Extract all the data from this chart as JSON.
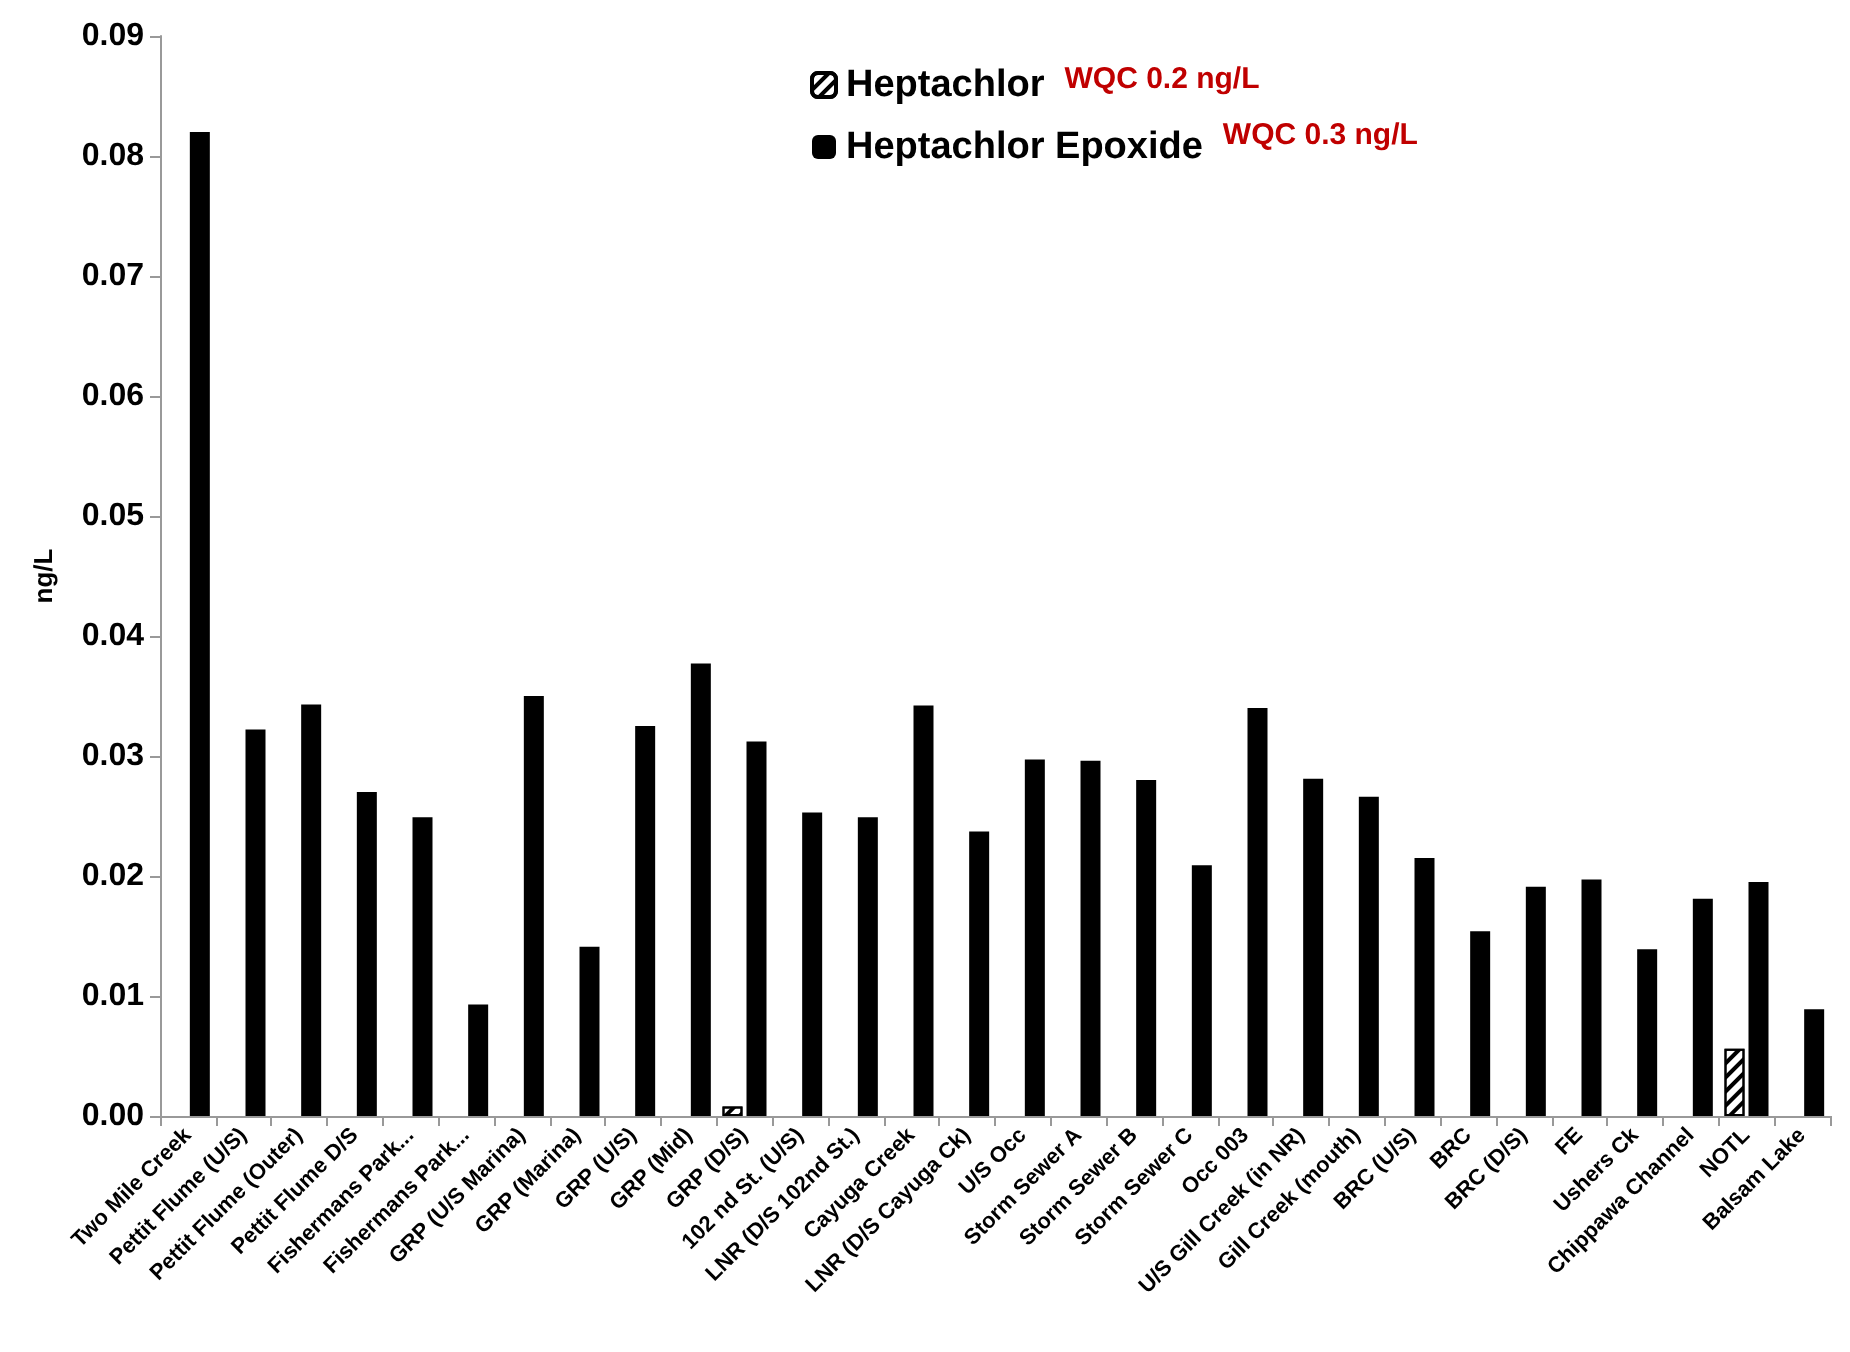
{
  "chart_data": {
    "type": "bar",
    "ylabel": "ng/L",
    "categories": [
      "Two Mile Creek",
      "Pettit Flume (U/S)",
      "Pettit Flume (Outer)",
      "Pettit Flume D/S",
      "Fishermans Park...",
      "Fishermans Park...",
      "GRP (U/S Marina)",
      "GRP (Marina)",
      "GRP (U/S)",
      "GRP (Mid)",
      "GRP (D/S)",
      "102 nd St. (U/S)",
      "LNR (D/S 102nd St.)",
      "Cayuga Creek",
      "LNR (D/S Cayuga Ck)",
      "U/S Occ",
      "Storm Sewer A",
      "Storm Sewer B",
      "Storm Sewer C",
      "Occ 003",
      "U/S Gill Creek (in NR)",
      "Gill Creek (mouth)",
      "BRC (U/S)",
      "BRC",
      "BRC (D/S)",
      "FE",
      "Ushers Ck",
      "Chippawa Channel",
      "NOTL",
      "Balsam Lake"
    ],
    "series": [
      {
        "name": "Heptachlor",
        "color": "#ffffff",
        "values": [
          null,
          null,
          null,
          null,
          null,
          null,
          null,
          null,
          null,
          null,
          0.0008,
          null,
          null,
          null,
          null,
          null,
          null,
          null,
          null,
          null,
          null,
          null,
          null,
          null,
          null,
          null,
          null,
          null,
          0.0056,
          null
        ]
      },
      {
        "name": "Heptachlor Epoxide",
        "color": "#000000",
        "values": [
          0.082,
          0.0322,
          0.0343,
          0.027,
          0.0249,
          0.0093,
          0.035,
          0.0141,
          0.0325,
          0.0377,
          0.0312,
          0.0253,
          0.0249,
          0.0342,
          0.0237,
          0.0297,
          0.0296,
          0.028,
          0.0209,
          0.034,
          0.0281,
          0.0266,
          0.0215,
          0.0154,
          0.0191,
          0.0197,
          0.0139,
          0.0181,
          0.0195,
          0.0089
        ]
      }
    ],
    "annotations": [
      "WQC 0.2 ng/L",
      "WQC 0.3 ng/L"
    ],
    "ylim": [
      0,
      0.09
    ],
    "yticks": [
      {
        "value": 0,
        "label": "0.00"
      },
      {
        "value": 0.01,
        "label": "0.01"
      },
      {
        "value": 0.02,
        "label": "0.02"
      },
      {
        "value": 0.03,
        "label": "0.03"
      },
      {
        "value": 0.04,
        "label": "0.04"
      },
      {
        "value": 0.05,
        "label": "0.05"
      },
      {
        "value": 0.06,
        "label": "0.06"
      },
      {
        "value": 0.07,
        "label": "0.07"
      },
      {
        "value": 0.08,
        "label": "0.08"
      },
      {
        "value": 0.09,
        "label": "0.09"
      }
    ],
    "legend": "top right",
    "grid": false
  }
}
